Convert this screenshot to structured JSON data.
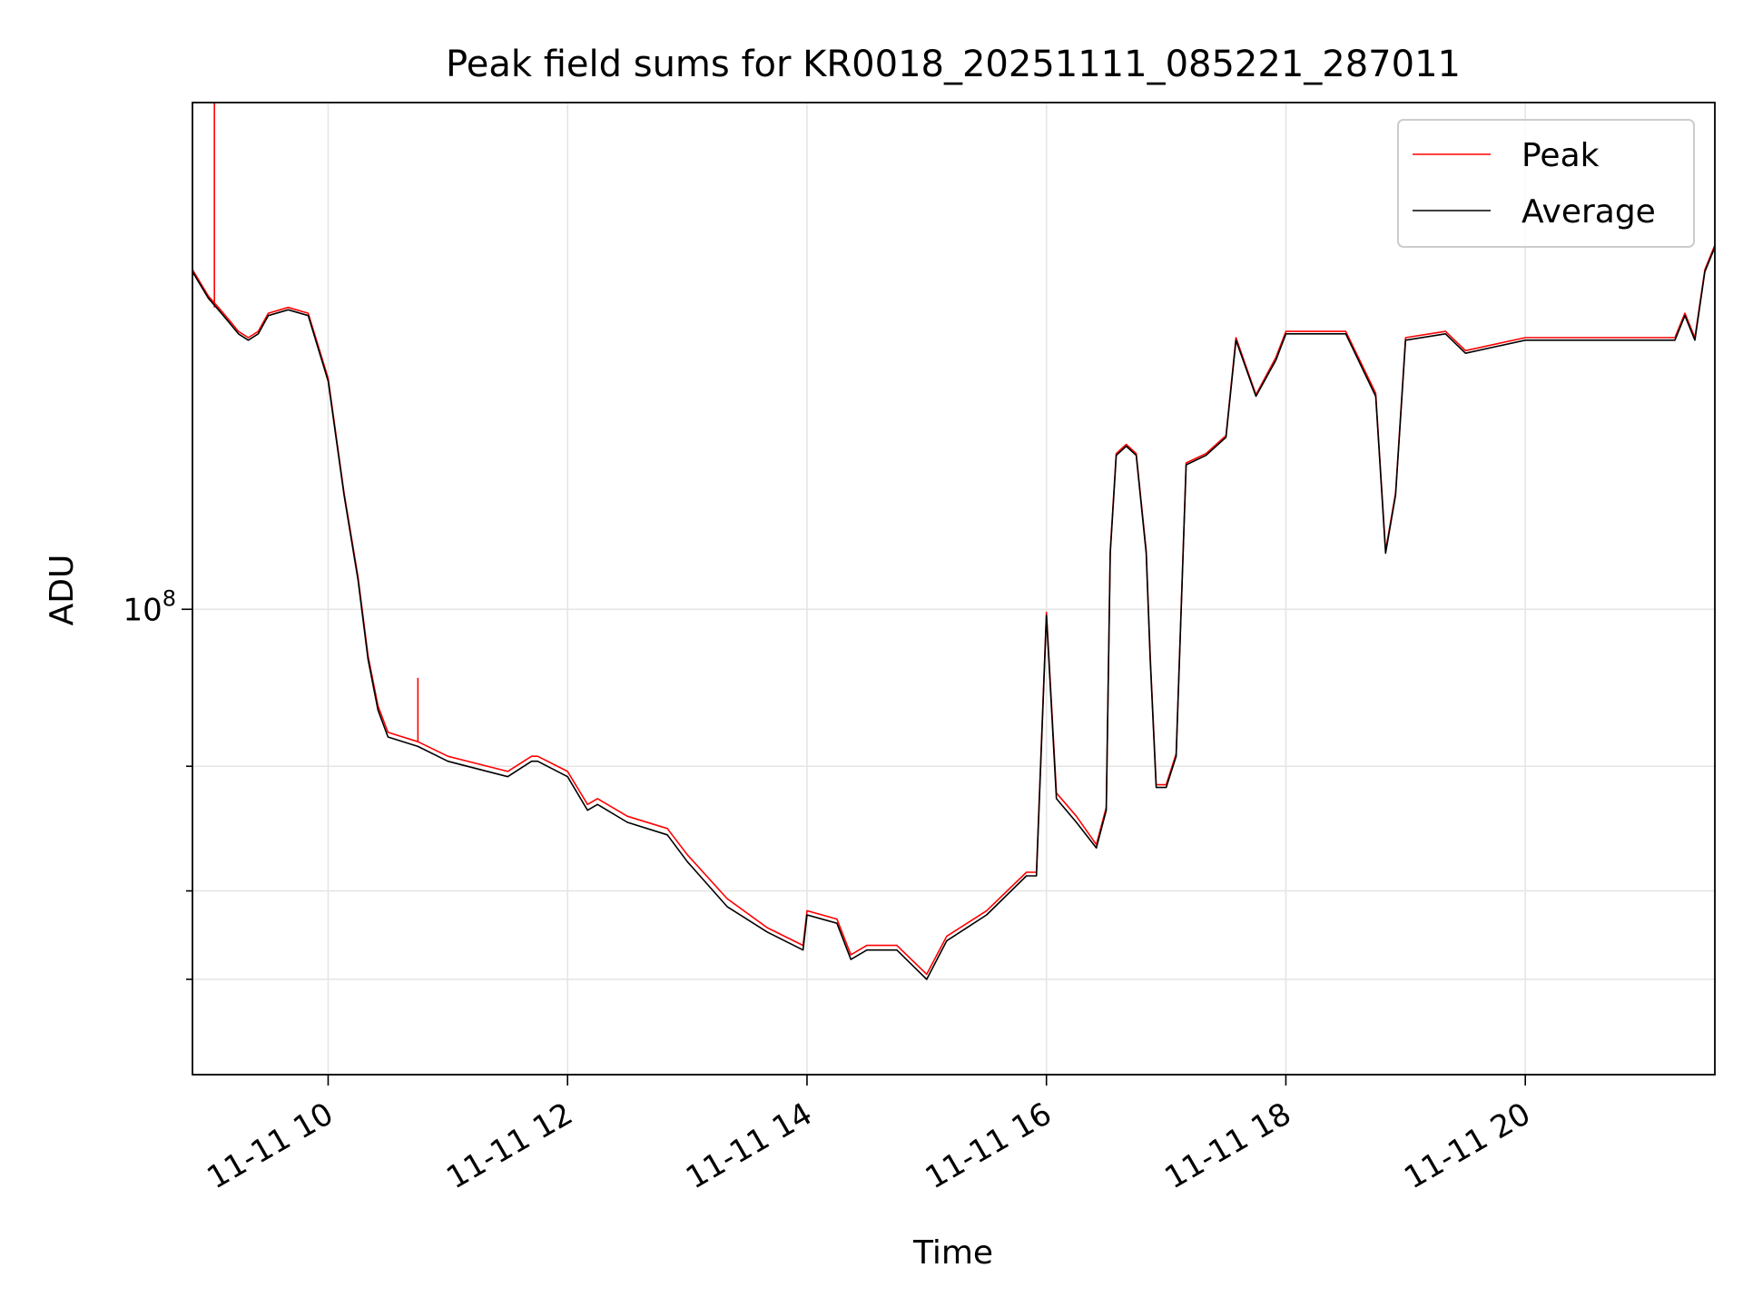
{
  "chart_data": {
    "type": "line",
    "title": "Peak field sums for KR0018_20251111_085221_287011",
    "xlabel": "Time",
    "ylabel": "ADU",
    "x_axis": {
      "kind": "time",
      "range": [
        "11-11 08:52",
        "11-11 21:35"
      ],
      "ticks": [
        {
          "value": "11-11 10:00",
          "label": "11-11 10"
        },
        {
          "value": "11-11 12:00",
          "label": "11-11 12"
        },
        {
          "value": "11-11 14:00",
          "label": "11-11 14"
        },
        {
          "value": "11-11 16:00",
          "label": "11-11 16"
        },
        {
          "value": "11-11 18:00",
          "label": "11-11 18"
        },
        {
          "value": "11-11 20:00",
          "label": "11-11 20"
        }
      ]
    },
    "y_axis": {
      "scale": "log",
      "range": [
        22000000,
        520000000
      ],
      "major_ticks": [
        {
          "value": 100000000,
          "base": "10",
          "exp": "8"
        }
      ],
      "minor_ticks": [
        30000000,
        40000000,
        60000000
      ]
    },
    "grid": true,
    "legend": {
      "placement": "top-right",
      "entries": [
        "Peak",
        "Average"
      ]
    },
    "colors": {
      "peak": "#ff0000",
      "average": "#000000"
    },
    "series": [
      {
        "name": "Average",
        "x": [
          "11-11 08:52",
          "11-11 09:00",
          "11-11 09:05",
          "11-11 09:10",
          "11-11 09:15",
          "11-11 09:20",
          "11-11 09:25",
          "11-11 09:30",
          "11-11 09:40",
          "11-11 09:50",
          "11-11 10:00",
          "11-11 10:08",
          "11-11 10:15",
          "11-11 10:20",
          "11-11 10:25",
          "11-11 10:30",
          "11-11 10:45",
          "11-11 11:00",
          "11-11 11:30",
          "11-11 11:42",
          "11-11 11:45",
          "11-11 12:00",
          "11-11 12:10",
          "11-11 12:15",
          "11-11 12:30",
          "11-11 12:50",
          "11-11 13:00",
          "11-11 13:20",
          "11-11 13:40",
          "11-11 13:58",
          "11-11 14:00",
          "11-11 14:15",
          "11-11 14:22",
          "11-11 14:30",
          "11-11 14:45",
          "11-11 15:00",
          "11-11 15:10",
          "11-11 15:30",
          "11-11 15:50",
          "11-11 15:55",
          "11-11 16:00",
          "11-11 16:05",
          "11-11 16:15",
          "11-11 16:25",
          "11-11 16:30",
          "11-11 16:32",
          "11-11 16:35",
          "11-11 16:40",
          "11-11 16:45",
          "11-11 16:50",
          "11-11 16:52",
          "11-11 16:55",
          "11-11 17:00",
          "11-11 17:05",
          "11-11 17:10",
          "11-11 17:20",
          "11-11 17:30",
          "11-11 17:35",
          "11-11 17:45",
          "11-11 17:55",
          "11-11 18:00",
          "11-11 18:30",
          "11-11 18:45",
          "11-11 18:50",
          "11-11 18:55",
          "11-11 19:00",
          "11-11 19:20",
          "11-11 19:30",
          "11-11 20:00",
          "11-11 20:30",
          "11-11 21:00",
          "11-11 21:15",
          "11-11 21:20",
          "11-11 21:25",
          "11-11 21:30",
          "11-11 21:35"
        ],
        "y": [
          300000000,
          275000000,
          265000000,
          255000000,
          245000000,
          240000000,
          245000000,
          260000000,
          265000000,
          260000000,
          210000000,
          145000000,
          110000000,
          85000000,
          72000000,
          66000000,
          64000000,
          61000000,
          58000000,
          61000000,
          61000000,
          58000000,
          52000000,
          53000000,
          50000000,
          48000000,
          44000000,
          38000000,
          35000000,
          33000000,
          37000000,
          36000000,
          32000000,
          33000000,
          33000000,
          30000000,
          34000000,
          37000000,
          42000000,
          42000000,
          98000000,
          54000000,
          50000000,
          46000000,
          52000000,
          120000000,
          165000000,
          170000000,
          165000000,
          120000000,
          85000000,
          56000000,
          56000000,
          62000000,
          160000000,
          165000000,
          175000000,
          240000000,
          200000000,
          225000000,
          245000000,
          245000000,
          200000000,
          120000000,
          145000000,
          240000000,
          245000000,
          230000000,
          240000000,
          240000000,
          240000000,
          240000000,
          260000000,
          240000000,
          300000000,
          325000000
        ]
      },
      {
        "name": "Peak",
        "x": [
          "11-11 08:52",
          "11-11 09:00",
          "11-11 09:05",
          "11-11 09:10",
          "11-11 09:15",
          "11-11 09:20",
          "11-11 09:25",
          "11-11 09:30",
          "11-11 09:40",
          "11-11 09:50",
          "11-11 10:00",
          "11-11 10:08",
          "11-11 10:15",
          "11-11 10:20",
          "11-11 10:25",
          "11-11 10:30",
          "11-11 10:45",
          "11-11 11:00",
          "11-11 11:30",
          "11-11 11:42",
          "11-11 11:45",
          "11-11 12:00",
          "11-11 12:10",
          "11-11 12:15",
          "11-11 12:30",
          "11-11 12:50",
          "11-11 13:00",
          "11-11 13:20",
          "11-11 13:40",
          "11-11 13:58",
          "11-11 14:00",
          "11-11 14:15",
          "11-11 14:22",
          "11-11 14:30",
          "11-11 14:45",
          "11-11 15:00",
          "11-11 15:10",
          "11-11 15:30",
          "11-11 15:50",
          "11-11 15:55",
          "11-11 16:00",
          "11-11 16:05",
          "11-11 16:15",
          "11-11 16:25",
          "11-11 16:30",
          "11-11 16:32",
          "11-11 16:35",
          "11-11 16:40",
          "11-11 16:45",
          "11-11 16:50",
          "11-11 16:52",
          "11-11 16:55",
          "11-11 17:00",
          "11-11 17:05",
          "11-11 17:10",
          "11-11 17:20",
          "11-11 17:30",
          "11-11 17:35",
          "11-11 17:45",
          "11-11 17:55",
          "11-11 18:00",
          "11-11 18:30",
          "11-11 18:45",
          "11-11 18:50",
          "11-11 18:55",
          "11-11 19:00",
          "11-11 19:20",
          "11-11 19:30",
          "11-11 20:00",
          "11-11 20:30",
          "11-11 21:00",
          "11-11 21:15",
          "11-11 21:20",
          "11-11 21:25",
          "11-11 21:30",
          "11-11 21:35"
        ],
        "y": [
          302000000,
          277000000,
          267000000,
          257000000,
          247000000,
          242000000,
          247000000,
          262000000,
          267000000,
          262000000,
          212000000,
          146000000,
          111000000,
          86000000,
          73000000,
          67000000,
          65000000,
          62000000,
          59000000,
          62000000,
          62000000,
          59000000,
          53000000,
          54000000,
          51000000,
          49000000,
          45000000,
          39000000,
          35500000,
          33500000,
          37500000,
          36500000,
          32500000,
          33500000,
          33500000,
          30500000,
          34500000,
          37500000,
          42500000,
          42500000,
          99000000,
          55000000,
          51000000,
          46500000,
          52500000,
          121000000,
          166000000,
          171000000,
          166000000,
          121000000,
          86000000,
          56500000,
          56500000,
          62500000,
          161000000,
          166000000,
          176000000,
          242000000,
          201000000,
          227000000,
          247000000,
          247000000,
          202000000,
          121000000,
          146000000,
          242000000,
          247000000,
          232000000,
          242000000,
          242000000,
          242000000,
          242000000,
          262000000,
          242000000,
          302000000,
          327000000
        ],
        "spikes": [
          {
            "x": "11-11 09:03",
            "y": 520000000
          },
          {
            "x": "11-11 10:45",
            "y": 80000000
          }
        ]
      }
    ]
  }
}
